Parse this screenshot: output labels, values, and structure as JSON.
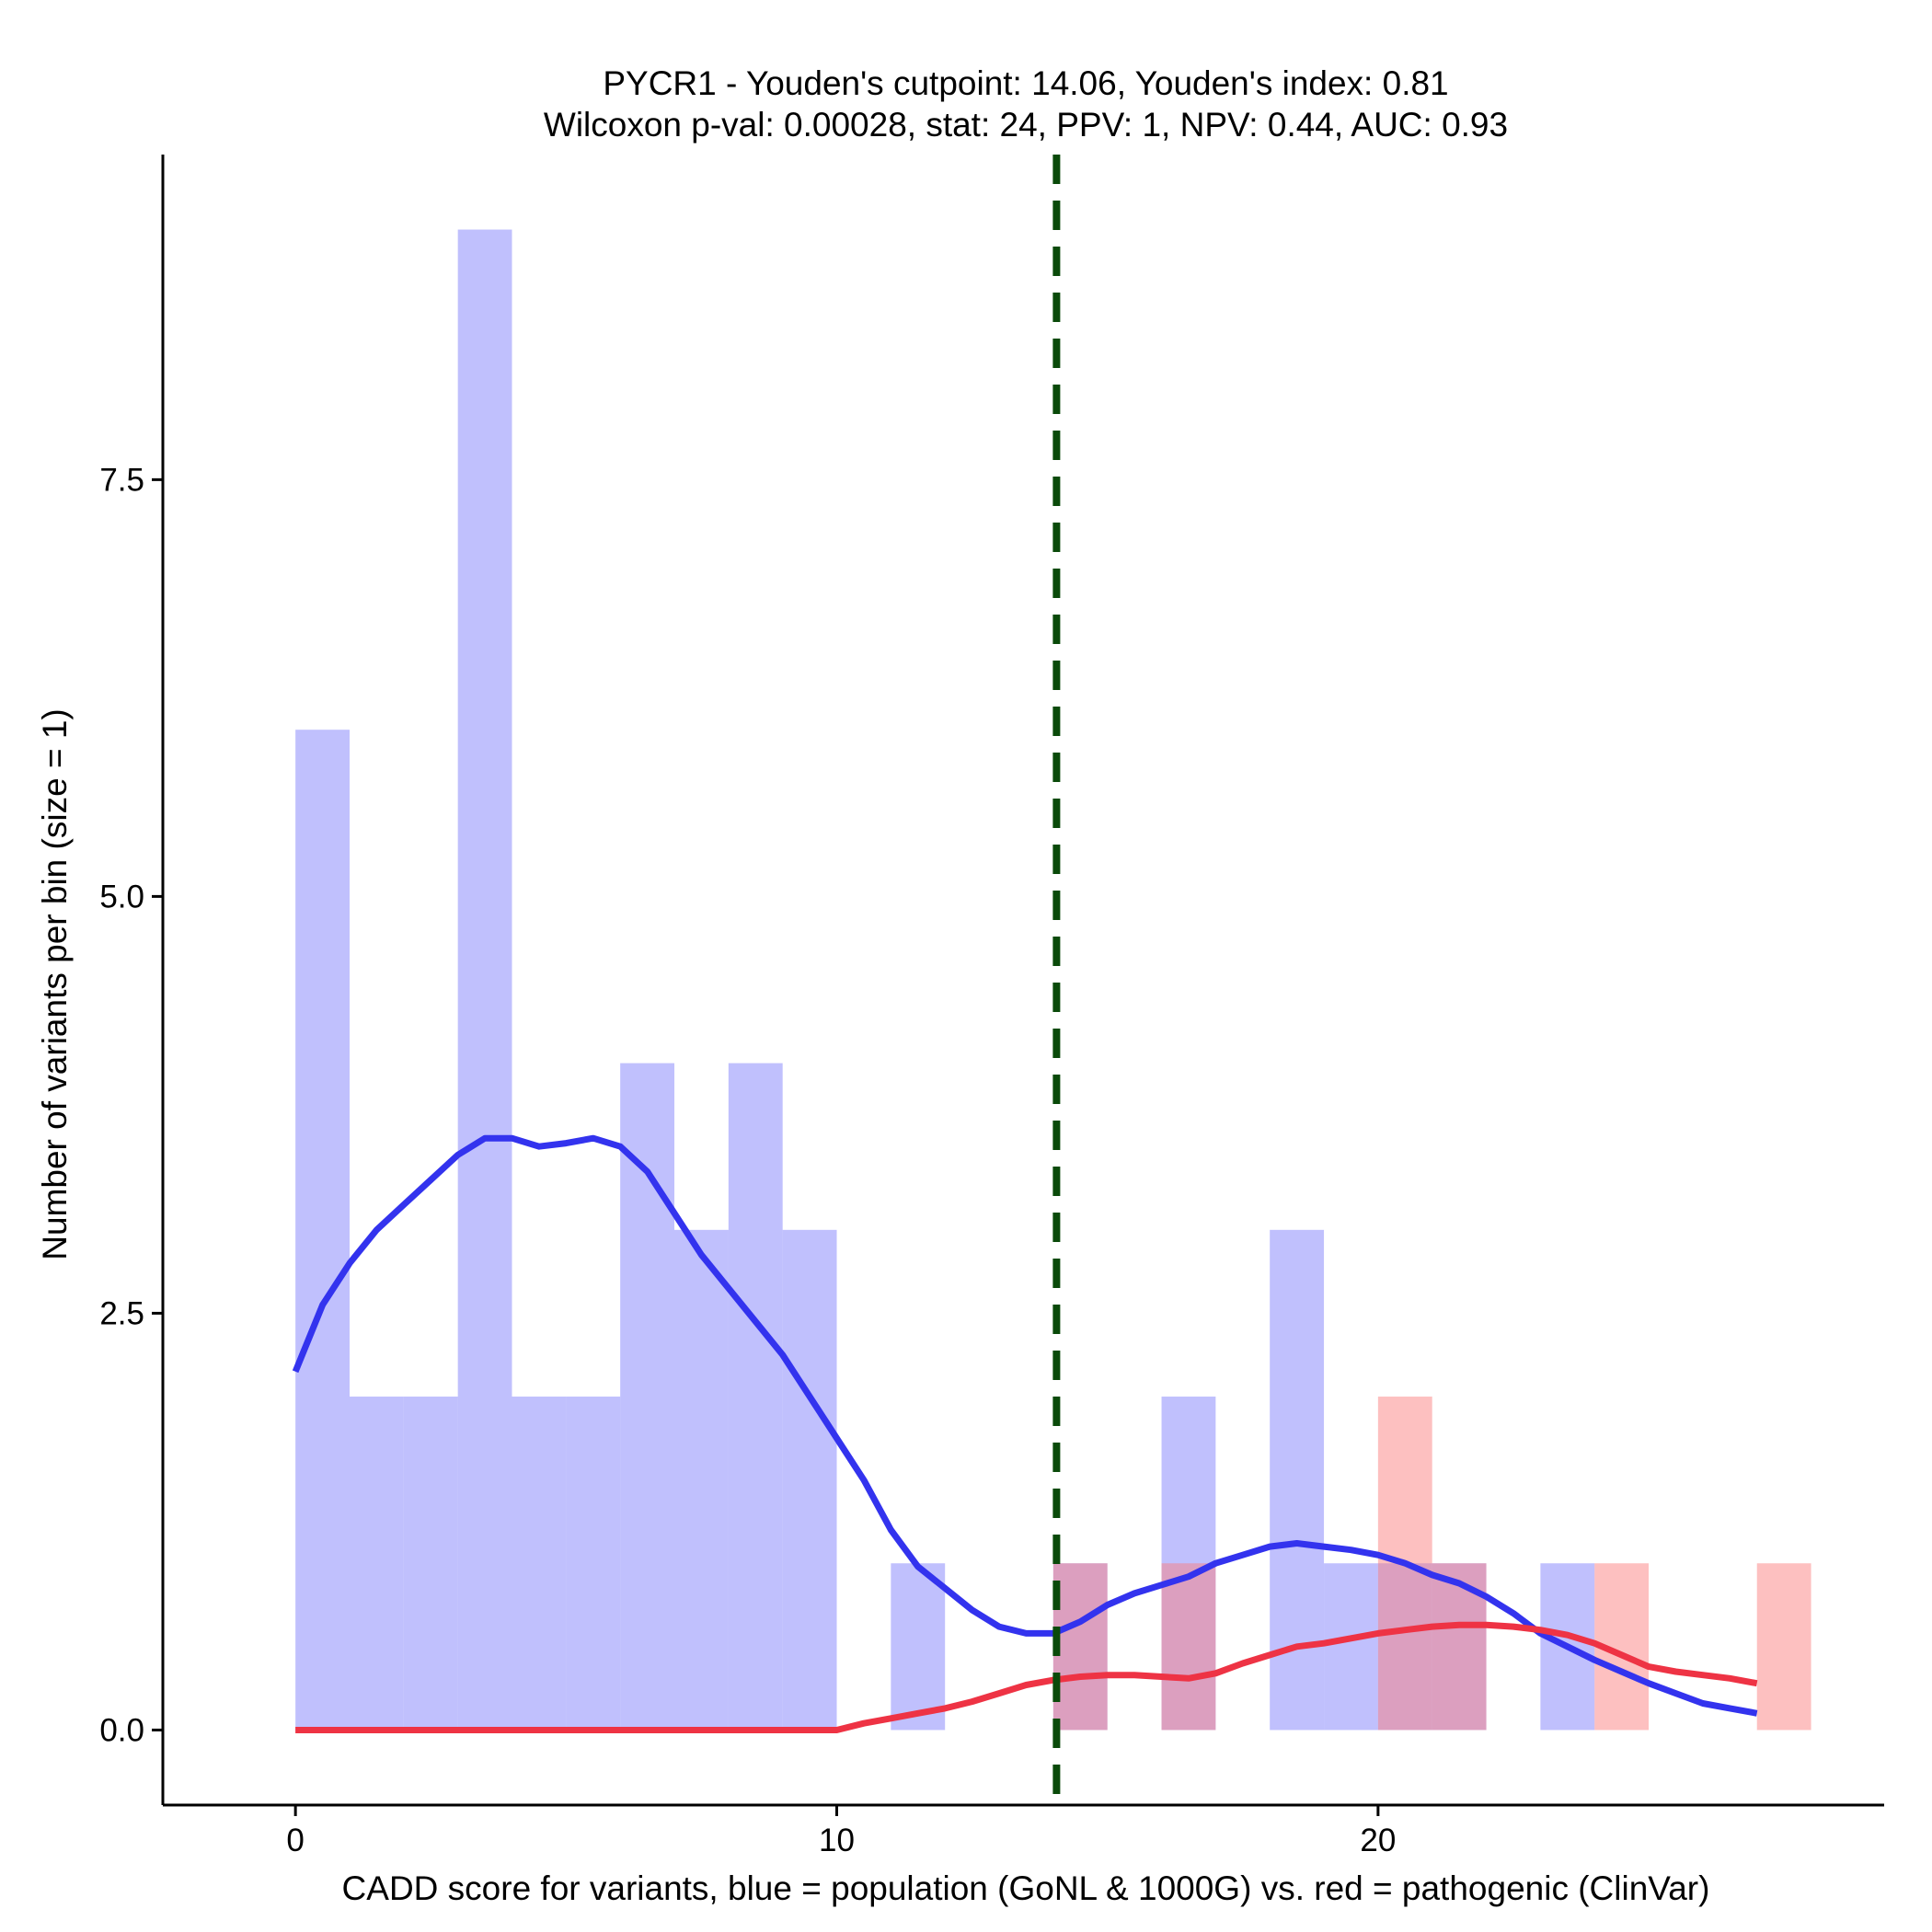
{
  "chart_data": {
    "type": "histogram",
    "title_line1": "PYCR1 - Youden's cutpoint: 14.06, Youden's index: 0.81",
    "title_line2": "Wilcoxon p-val: 0.00028, stat: 24, PPV: 1, NPV: 0.44, AUC: 0.93",
    "xlabel": "CADD score for variants, blue = population (GoNL & 1000G) vs. red = pathogenic (ClinVar)",
    "ylabel": "Number of variants per bin (size = 1)",
    "xlim": [
      -2.45,
      29.35
    ],
    "ylim": [
      -0.45,
      9.45
    ],
    "xticks": [
      0,
      10,
      20
    ],
    "xtick_labels": [
      "0",
      "10",
      "20"
    ],
    "yticks": [
      0,
      2.5,
      5,
      7.5
    ],
    "ytick_labels": [
      "0.0",
      "2.5",
      "5.0",
      "7.5"
    ],
    "bin_width": 1,
    "cutpoint": 14.06,
    "series": [
      {
        "name": "population (GoNL & 1000G)",
        "color": "#7b7bfb",
        "bins": [
          {
            "x": 0,
            "count": 6
          },
          {
            "x": 1,
            "count": 2
          },
          {
            "x": 2,
            "count": 2
          },
          {
            "x": 3,
            "count": 9
          },
          {
            "x": 4,
            "count": 2
          },
          {
            "x": 5,
            "count": 2
          },
          {
            "x": 6,
            "count": 4
          },
          {
            "x": 7,
            "count": 3
          },
          {
            "x": 8,
            "count": 4
          },
          {
            "x": 9,
            "count": 3
          },
          {
            "x": 11,
            "count": 1
          },
          {
            "x": 14,
            "count": 1
          },
          {
            "x": 16,
            "count": 2
          },
          {
            "x": 18,
            "count": 3
          },
          {
            "x": 19,
            "count": 1
          },
          {
            "x": 20,
            "count": 1
          },
          {
            "x": 21,
            "count": 1
          },
          {
            "x": 23,
            "count": 1
          }
        ],
        "density": [
          [
            0,
            2.15
          ],
          [
            0.5,
            2.55
          ],
          [
            1,
            2.8
          ],
          [
            1.5,
            3.0
          ],
          [
            2,
            3.15
          ],
          [
            2.5,
            3.3
          ],
          [
            3,
            3.45
          ],
          [
            3.5,
            3.55
          ],
          [
            4,
            3.55
          ],
          [
            4.5,
            3.5
          ],
          [
            5,
            3.52
          ],
          [
            5.5,
            3.55
          ],
          [
            6,
            3.5
          ],
          [
            6.5,
            3.35
          ],
          [
            7,
            3.1
          ],
          [
            7.5,
            2.85
          ],
          [
            8,
            2.65
          ],
          [
            8.5,
            2.45
          ],
          [
            9,
            2.25
          ],
          [
            9.5,
            2.0
          ],
          [
            10,
            1.75
          ],
          [
            10.5,
            1.5
          ],
          [
            11,
            1.2
          ],
          [
            11.5,
            0.98
          ],
          [
            12,
            0.85
          ],
          [
            12.5,
            0.72
          ],
          [
            13,
            0.62
          ],
          [
            13.5,
            0.58
          ],
          [
            14,
            0.58
          ],
          [
            14.5,
            0.65
          ],
          [
            15,
            0.75
          ],
          [
            15.5,
            0.82
          ],
          [
            16,
            0.87
          ],
          [
            16.5,
            0.92
          ],
          [
            17,
            1.0
          ],
          [
            17.5,
            1.05
          ],
          [
            18,
            1.1
          ],
          [
            18.5,
            1.12
          ],
          [
            19,
            1.1
          ],
          [
            19.5,
            1.08
          ],
          [
            20,
            1.05
          ],
          [
            20.5,
            1.0
          ],
          [
            21,
            0.93
          ],
          [
            21.5,
            0.88
          ],
          [
            22,
            0.8
          ],
          [
            22.5,
            0.7
          ],
          [
            23,
            0.58
          ],
          [
            23.5,
            0.5
          ],
          [
            24,
            0.42
          ],
          [
            24.5,
            0.35
          ],
          [
            25,
            0.28
          ],
          [
            25.5,
            0.22
          ],
          [
            26,
            0.16
          ],
          [
            26.5,
            0.13
          ],
          [
            27,
            0.1
          ]
        ]
      },
      {
        "name": "pathogenic (ClinVar)",
        "color": "#fb7b7b",
        "bins": [
          {
            "x": 14,
            "count": 1
          },
          {
            "x": 16,
            "count": 1
          },
          {
            "x": 20,
            "count": 2
          },
          {
            "x": 21,
            "count": 1
          },
          {
            "x": 24,
            "count": 1
          },
          {
            "x": 27,
            "count": 1
          }
        ],
        "density": [
          [
            0,
            0.0
          ],
          [
            10,
            0.0
          ],
          [
            10.5,
            0.04
          ],
          [
            11,
            0.07
          ],
          [
            11.5,
            0.1
          ],
          [
            12,
            0.13
          ],
          [
            12.5,
            0.17
          ],
          [
            13,
            0.22
          ],
          [
            13.5,
            0.27
          ],
          [
            14,
            0.3
          ],
          [
            14.5,
            0.32
          ],
          [
            15,
            0.33
          ],
          [
            15.5,
            0.33
          ],
          [
            16,
            0.32
          ],
          [
            16.5,
            0.31
          ],
          [
            17,
            0.34
          ],
          [
            17.5,
            0.4
          ],
          [
            18,
            0.45
          ],
          [
            18.5,
            0.5
          ],
          [
            19,
            0.52
          ],
          [
            19.5,
            0.55
          ],
          [
            20,
            0.58
          ],
          [
            20.5,
            0.6
          ],
          [
            21,
            0.62
          ],
          [
            21.5,
            0.63
          ],
          [
            22,
            0.63
          ],
          [
            22.5,
            0.62
          ],
          [
            23,
            0.6
          ],
          [
            23.5,
            0.57
          ],
          [
            24,
            0.52
          ],
          [
            24.5,
            0.45
          ],
          [
            25,
            0.38
          ],
          [
            25.5,
            0.35
          ],
          [
            26,
            0.33
          ],
          [
            26.5,
            0.31
          ],
          [
            27,
            0.28
          ]
        ]
      }
    ]
  }
}
